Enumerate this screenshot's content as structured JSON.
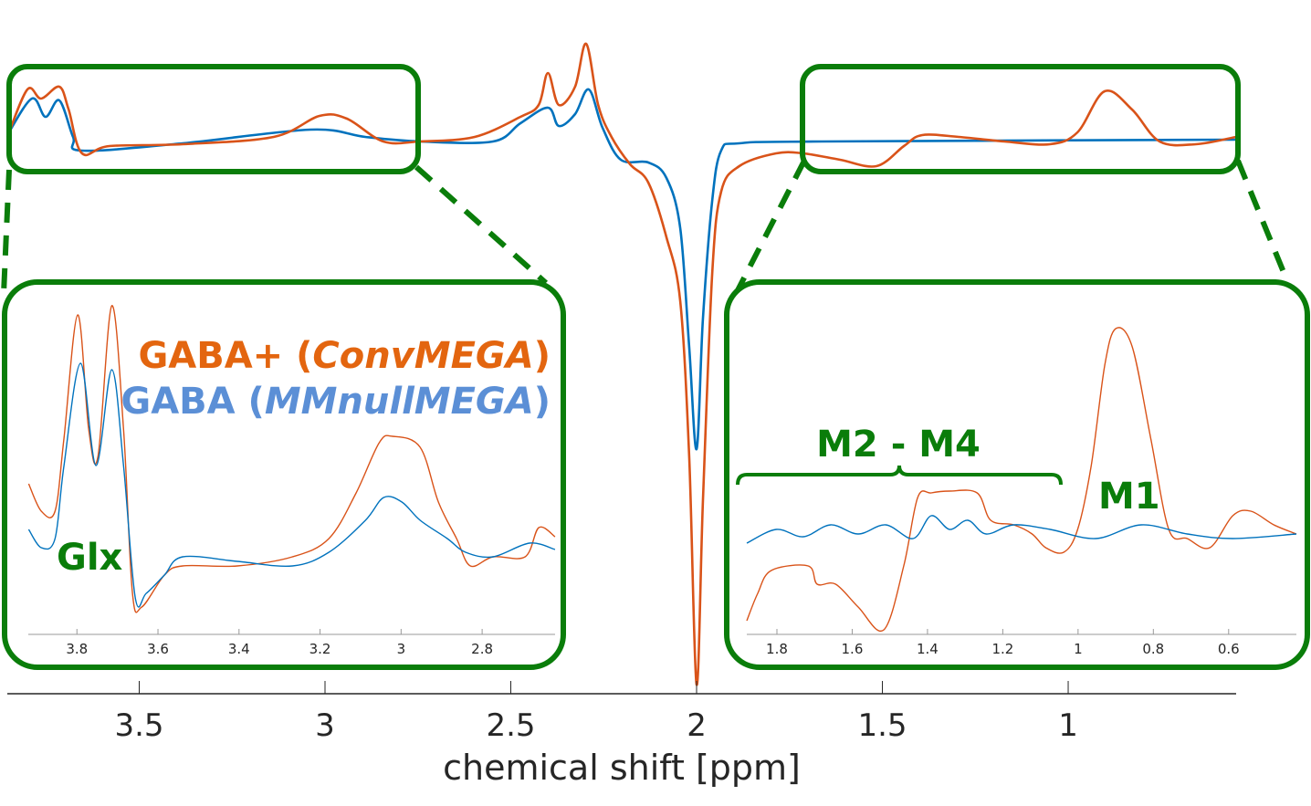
{
  "chart_data": [
    {
      "type": "line",
      "panel": "main",
      "xlabel": "chemical shift [ppm]",
      "xlim": [
        3.855,
        0.548
      ],
      "x_reversed": true,
      "xticks": [
        3.5,
        3,
        2.5,
        2,
        1.5,
        1
      ],
      "xtick_labels": [
        "3.5",
        "3",
        "2.5",
        "2",
        "1.5",
        "1"
      ],
      "y_units": "arbitrary",
      "series": [
        {
          "key": "conv",
          "color": "#D95319",
          "x": [
            3.855,
            3.801,
            3.764,
            3.715,
            3.69,
            3.654,
            3.58,
            3.383,
            3.138,
            3.015,
            2.941,
            2.843,
            2.744,
            2.597,
            2.474,
            2.425,
            2.4,
            2.371,
            2.327,
            2.297,
            2.265,
            2.229,
            2.179,
            2.13,
            2.081,
            2.044,
            2.02,
            2.0,
            1.983,
            1.958,
            1.934,
            1.885,
            1.786,
            1.713,
            1.614,
            1.516,
            1.442,
            1.393,
            1.295,
            1.172,
            1.049,
            0.975,
            0.902,
            0.828,
            0.754,
            0.656,
            0.548
          ],
          "y": [
            5,
            57,
            47,
            60,
            35,
            -13,
            -5,
            -3,
            5,
            28,
            25,
            0,
            0,
            5,
            27,
            40,
            75,
            40,
            60,
            107,
            40,
            5,
            -25,
            -45,
            -105,
            -175,
            -345,
            -595,
            -395,
            -145,
            -55,
            -27,
            -13,
            -13,
            -20,
            -27,
            -5,
            7,
            5,
            0,
            -3,
            10,
            55,
            35,
            0,
            -3,
            5
          ]
        },
        {
          "key": "mmnull",
          "color": "#0072BD",
          "x": [
            3.855,
            3.789,
            3.752,
            3.715,
            3.678,
            3.654,
            3.383,
            3.039,
            2.892,
            2.744,
            2.548,
            2.474,
            2.4,
            2.371,
            2.327,
            2.29,
            2.253,
            2.204,
            2.13,
            2.081,
            2.044,
            2.02,
            2.0,
            1.983,
            1.958,
            1.934,
            1.885,
            1.663,
            0.548
          ],
          "y": [
            7,
            47,
            27,
            45,
            5,
            -10,
            -2,
            13,
            5,
            0,
            0,
            20,
            37,
            17,
            30,
            57,
            15,
            -20,
            -23,
            -40,
            -95,
            -225,
            -337,
            -195,
            -65,
            -10,
            -2,
            0,
            2
          ]
        }
      ]
    },
    {
      "type": "line",
      "panel": "inset-left",
      "xlim": [
        3.92,
        2.62
      ],
      "x_reversed": true,
      "xticks": [
        3.8,
        3.6,
        3.4,
        3.2,
        3,
        2.8
      ],
      "xtick_labels": [
        "3.8",
        "3.6",
        "3.4",
        "3.2",
        "3",
        "2.8"
      ],
      "y_units": "arbitrary",
      "series": [
        {
          "key": "conv",
          "color": "#D95319",
          "x": [
            3.919,
            3.888,
            3.854,
            3.832,
            3.798,
            3.771,
            3.748,
            3.714,
            3.685,
            3.663,
            3.64,
            3.584,
            3.539,
            3.404,
            3.268,
            3.178,
            3.111,
            3.054,
            3.021,
            2.953,
            2.908,
            2.863,
            2.829,
            2.773,
            2.694,
            2.66,
            2.62
          ],
          "y": [
            170,
            140,
            140,
            220,
            355,
            230,
            200,
            365,
            230,
            50,
            35,
            70,
            80,
            80,
            90,
            110,
            160,
            215,
            222,
            210,
            150,
            110,
            80,
            90,
            90,
            122,
            112
          ]
        },
        {
          "key": "mmnull",
          "color": "#0072BD",
          "x": [
            3.919,
            3.888,
            3.854,
            3.832,
            3.791,
            3.753,
            3.714,
            3.685,
            3.656,
            3.629,
            3.584,
            3.539,
            3.404,
            3.268,
            3.178,
            3.088,
            3.043,
            2.998,
            2.953,
            2.886,
            2.841,
            2.773,
            2.683,
            2.62
          ],
          "y": [
            120,
            100,
            110,
            190,
            302,
            190,
            295,
            190,
            45,
            50,
            70,
            90,
            85,
            80,
            95,
            130,
            155,
            150,
            130,
            110,
            95,
            90,
            105,
            98
          ]
        }
      ]
    },
    {
      "type": "line",
      "panel": "inset-right",
      "xlim": [
        1.88,
        0.42
      ],
      "x_reversed": true,
      "xticks": [
        1.8,
        1.6,
        1.4,
        1.2,
        1,
        0.8,
        0.6
      ],
      "xtick_labels": [
        "1.8",
        "1.6",
        "1.4",
        "1.2",
        "1",
        "0.8",
        "0.6"
      ],
      "y_units": "arbitrary",
      "series": [
        {
          "key": "conv",
          "color": "#D95319",
          "x": [
            1.88,
            1.851,
            1.815,
            1.717,
            1.693,
            1.644,
            1.584,
            1.516,
            1.463,
            1.426,
            1.39,
            1.341,
            1.268,
            1.232,
            1.171,
            1.122,
            1.086,
            1.038,
            1.001,
            0.965,
            0.929,
            0.9,
            0.856,
            0.807,
            0.759,
            0.71,
            0.65,
            0.589,
            0.541,
            0.48,
            0.42
          ],
          "y": [
            20,
            50,
            75,
            80,
            60,
            60,
            35,
            10,
            80,
            155,
            160,
            162,
            160,
            130,
            125,
            115,
            100,
            95,
            120,
            190,
            300,
            340,
            320,
            220,
            120,
            110,
            100,
            135,
            140,
            125,
            115
          ]
        },
        {
          "key": "mmnull",
          "color": "#0072BD",
          "x": [
            1.88,
            1.802,
            1.73,
            1.657,
            1.584,
            1.511,
            1.438,
            1.39,
            1.341,
            1.293,
            1.244,
            1.171,
            1.074,
            0.953,
            0.832,
            0.71,
            0.589,
            0.42
          ],
          "y": [
            105,
            120,
            112,
            125,
            115,
            125,
            110,
            135,
            120,
            130,
            115,
            125,
            120,
            110,
            125,
            115,
            110,
            115
          ]
        }
      ]
    }
  ],
  "legend": {
    "conv_prefix": "GABA+ (",
    "conv_name": "ConvMEGA",
    "conv_suffix": ")",
    "conv_color": "#E3650F",
    "mmnull_prefix": "GABA (",
    "mmnull_name": "MMnullMEGA",
    "mmnull_suffix": ")",
    "mmnull_color": "#5B8FD6"
  },
  "annotations": {
    "glx": "Glx",
    "m2_m4": "M2 - M4",
    "m1": "M1",
    "color": "#0A7D0A"
  }
}
